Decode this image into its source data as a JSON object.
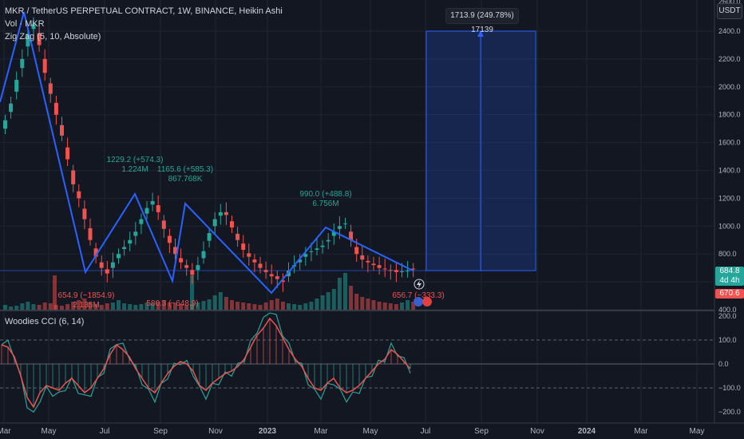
{
  "legend": {
    "title": "MKR / TetherUS PERPETUAL CONTRACT, 1W, BINANCE, Heikin Ashi",
    "volume": "Vol · MKR",
    "zigzag": "Zig Zag (5, 10, Absolute)"
  },
  "oscillator": {
    "title": "Woodies CCI (6, 14)"
  },
  "currency": "USDT",
  "price_axis": [
    "2400.0",
    "2200.0",
    "2000.0",
    "1800.0",
    "1600.0",
    "1400.0",
    "1200.0",
    "1000.0",
    "800.0",
    "600.0",
    "400.0"
  ],
  "price_axis_top": "2600.0",
  "osc_axis": [
    "200.0",
    "100.0",
    "0.0",
    "−100.0",
    "−200.0"
  ],
  "time_axis": [
    "Mar",
    "May",
    "Jul",
    "Sep",
    "Nov",
    "2023",
    "Mar",
    "May",
    "Jul",
    "Sep",
    "Nov",
    "2024",
    "Mar",
    "May"
  ],
  "price_tags": {
    "last": "684.8",
    "countdown": "4d 4h",
    "low": "670.6"
  },
  "range_box": {
    "label": "1713.9 (249.78%) 17139"
  },
  "zigzag_labels": [
    {
      "l1": "1229.2 (+574.3)",
      "l2": "1.224M"
    },
    {
      "l1": "1165.6 (+585.3)",
      "l2": "867.768K"
    },
    {
      "l1": "990.0 (+488.8)",
      "l2": "6.756M"
    },
    {
      "l1": "654.9 (−1854.9)",
      "l2": "2.135M"
    },
    {
      "l1": "580.3 (−648.9)",
      "l2": ""
    },
    {
      "l1": "656.7 (−333.3)",
      "l2": ""
    }
  ],
  "colors": {
    "up": "#26a69a",
    "down": "#ef5350",
    "zigzag": "#2962ff",
    "cci_turbo": "#26a69a",
    "cci_main": "#ef5350"
  }
}
